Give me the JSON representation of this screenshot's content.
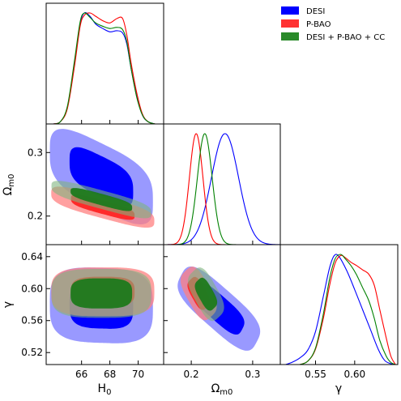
{
  "chart_data": {
    "type": "corner-triangle-plot",
    "legend": {
      "placement": "top-right",
      "entries": [
        {
          "name": "DESI",
          "color": "#0000ff"
        },
        {
          "name": "P-BAO",
          "color": "#ff0000"
        },
        {
          "name": "DESI + P-BAO + CC",
          "color": "#008000"
        }
      ]
    },
    "parameters": [
      {
        "key": "H0",
        "label": "H",
        "sub": "0",
        "range": [
          63.5,
          71.8
        ],
        "ticks": [
          66,
          68,
          70
        ],
        "tick_labels": [
          "66",
          "68",
          "70"
        ]
      },
      {
        "key": "Om",
        "label": "Ω",
        "sub": "m0",
        "range": [
          0.155,
          0.345
        ],
        "ticks": [
          0.2,
          0.3
        ],
        "tick_labels": [
          "0.2",
          "0.3"
        ]
      },
      {
        "key": "gamma",
        "label": "γ",
        "sub": "",
        "range": [
          0.505,
          0.655
        ],
        "ticks": [
          0.52,
          0.56,
          0.6,
          0.64
        ],
        "tick_labels": [
          "0.52",
          "0.56",
          "0.60",
          "0.64"
        ],
        "x_ticks": [
          0.55,
          0.6
        ],
        "x_tick_labels": [
          "0.55",
          "0.60"
        ],
        "x_range": [
          0.505,
          0.655
        ]
      }
    ],
    "marginals": {
      "H0": [
        {
          "series": "DESI",
          "x": [
            64.0,
            64.5,
            65.0,
            65.5,
            65.9,
            66.2,
            66.6,
            67.0,
            67.5,
            68.0,
            68.5,
            68.9,
            69.2,
            69.5,
            69.9,
            70.3,
            70.7,
            71.2
          ],
          "y": [
            0,
            0.02,
            0.15,
            0.55,
            0.9,
            1.0,
            0.97,
            0.9,
            0.86,
            0.83,
            0.84,
            0.82,
            0.72,
            0.5,
            0.25,
            0.08,
            0.02,
            0
          ]
        },
        {
          "series": "P-BAO",
          "x": [
            64.0,
            64.5,
            65.0,
            65.5,
            65.9,
            66.2,
            66.6,
            67.0,
            67.5,
            68.0,
            68.5,
            68.9,
            69.2,
            69.5,
            69.9,
            70.3,
            70.7,
            71.2
          ],
          "y": [
            0,
            0.02,
            0.14,
            0.52,
            0.88,
            0.98,
            1.0,
            0.97,
            0.93,
            0.91,
            0.95,
            0.95,
            0.8,
            0.55,
            0.28,
            0.09,
            0.02,
            0
          ]
        },
        {
          "series": "DESI + P-BAO + CC",
          "x": [
            64.0,
            64.5,
            65.0,
            65.5,
            65.9,
            66.2,
            66.6,
            67.0,
            67.5,
            68.0,
            68.5,
            68.9,
            69.2,
            69.5,
            69.9,
            70.3,
            70.7,
            71.2
          ],
          "y": [
            0,
            0.02,
            0.16,
            0.57,
            0.92,
            1.0,
            0.96,
            0.91,
            0.88,
            0.86,
            0.87,
            0.85,
            0.74,
            0.5,
            0.24,
            0.08,
            0.02,
            0
          ]
        }
      ],
      "Om": [
        {
          "series": "DESI",
          "mean": 0.255,
          "sigma": 0.022
        },
        {
          "series": "P-BAO",
          "mean": 0.208,
          "sigma": 0.011
        },
        {
          "series": "DESI + P-BAO + CC",
          "mean": 0.222,
          "sigma": 0.012
        }
      ],
      "gamma": [
        {
          "series": "DESI",
          "x": [
            0.512,
            0.52,
            0.53,
            0.54,
            0.55,
            0.56,
            0.568,
            0.574,
            0.58,
            0.59,
            0.6,
            0.61,
            0.62,
            0.63,
            0.638,
            0.645,
            0.652
          ],
          "y": [
            0,
            0.02,
            0.06,
            0.13,
            0.3,
            0.62,
            0.88,
            0.99,
            0.98,
            0.85,
            0.68,
            0.5,
            0.32,
            0.14,
            0.04,
            0.01,
            0
          ]
        },
        {
          "series": "P-BAO",
          "x": [
            0.53,
            0.54,
            0.55,
            0.56,
            0.568,
            0.575,
            0.582,
            0.588,
            0.595,
            0.602,
            0.61,
            0.618,
            0.625,
            0.632,
            0.64,
            0.646,
            0.652
          ],
          "y": [
            0,
            0.03,
            0.14,
            0.42,
            0.72,
            0.92,
            0.99,
            0.97,
            0.93,
            0.9,
            0.86,
            0.82,
            0.72,
            0.5,
            0.25,
            0.08,
            0
          ]
        },
        {
          "series": "DESI + P-BAO + CC",
          "x": [
            0.53,
            0.54,
            0.55,
            0.56,
            0.568,
            0.575,
            0.582,
            0.588,
            0.595,
            0.602,
            0.61,
            0.618,
            0.625,
            0.632,
            0.64,
            0.646,
            0.652
          ],
          "y": [
            0,
            0.03,
            0.15,
            0.46,
            0.78,
            0.96,
            1.0,
            0.96,
            0.9,
            0.82,
            0.7,
            0.58,
            0.42,
            0.22,
            0.08,
            0.02,
            0
          ]
        }
      ]
    },
    "contours_2d": {
      "Om_vs_H0": [
        {
          "series": "DESI",
          "center": [
            67.4,
            0.262
          ],
          "sigma": [
            1.55,
            0.028
          ],
          "rho": -0.6
        },
        {
          "series": "P-BAO",
          "center": [
            67.5,
            0.214
          ],
          "sigma": [
            1.55,
            0.012
          ],
          "rho": -0.78
        },
        {
          "series": "DESI + P-BAO + CC",
          "center": [
            67.4,
            0.226
          ],
          "sigma": [
            1.5,
            0.011
          ],
          "rho": -0.82
        }
      ],
      "gamma_vs_H0": [
        {
          "series": "DESI",
          "center": [
            67.4,
            0.579
          ],
          "sigma": [
            1.55,
            0.02
          ],
          "rho": -0.05
        },
        {
          "series": "P-BAO",
          "center": [
            67.5,
            0.596
          ],
          "sigma": [
            1.55,
            0.013
          ],
          "rho": 0.0
        },
        {
          "series": "DESI + P-BAO + CC",
          "center": [
            67.4,
            0.594
          ],
          "sigma": [
            1.5,
            0.013
          ],
          "rho": 0.0
        }
      ],
      "gamma_vs_Om": [
        {
          "series": "DESI",
          "center": [
            0.245,
            0.575
          ],
          "sigma": [
            0.027,
            0.02
          ],
          "rho": -0.75
        },
        {
          "series": "P-BAO",
          "center": [
            0.212,
            0.594
          ],
          "sigma": [
            0.011,
            0.013
          ],
          "rho": -0.55
        },
        {
          "series": "DESI + P-BAO + CC",
          "center": [
            0.224,
            0.593
          ],
          "sigma": [
            0.011,
            0.013
          ],
          "rho": -0.55
        }
      ]
    },
    "grid": false
  }
}
